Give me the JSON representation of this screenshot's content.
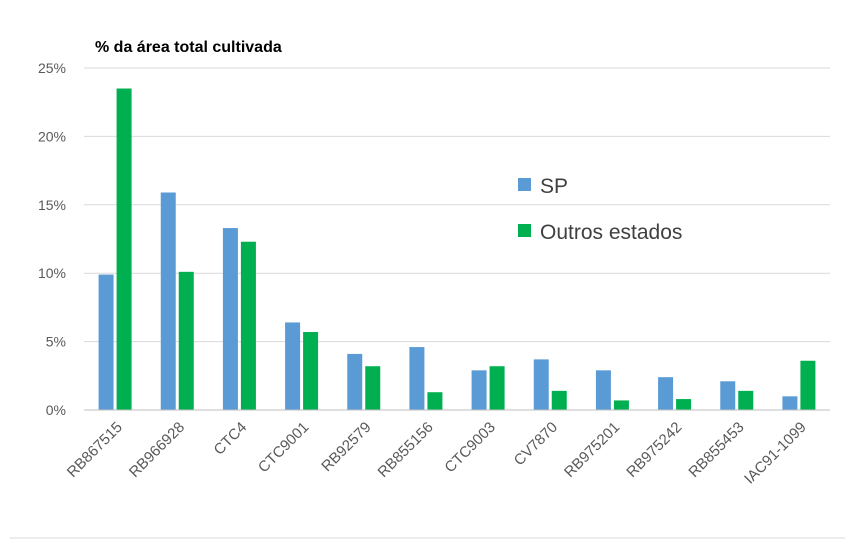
{
  "chart_data": {
    "type": "bar",
    "title": "% da área total cultivada",
    "xlabel": "",
    "ylabel": "",
    "ylim": [
      0,
      25
    ],
    "ytick_values": [
      0,
      5,
      10,
      15,
      20,
      25
    ],
    "ytick_labels": [
      "0%",
      "5%",
      "10%",
      "15%",
      "20%",
      "25%"
    ],
    "grid": "horizontal",
    "legend_position": "right",
    "categories": [
      "RB867515",
      "RB966928",
      "CTC4",
      "CTC9001",
      "RB92579",
      "RB855156",
      "CTC9003",
      "CV7870",
      "RB975201",
      "RB975242",
      "RB855453",
      "IAC91-1099"
    ],
    "series": [
      {
        "name": "SP",
        "color": "#5b9bd5",
        "values": [
          9.9,
          15.9,
          13.3,
          6.4,
          4.1,
          4.6,
          2.9,
          3.7,
          2.9,
          2.4,
          2.1,
          1.0
        ]
      },
      {
        "name": "Outros estados",
        "color": "#00b050",
        "values": [
          23.5,
          10.1,
          12.3,
          5.7,
          3.2,
          1.3,
          3.2,
          1.4,
          0.7,
          0.8,
          1.4,
          3.6
        ]
      }
    ]
  }
}
